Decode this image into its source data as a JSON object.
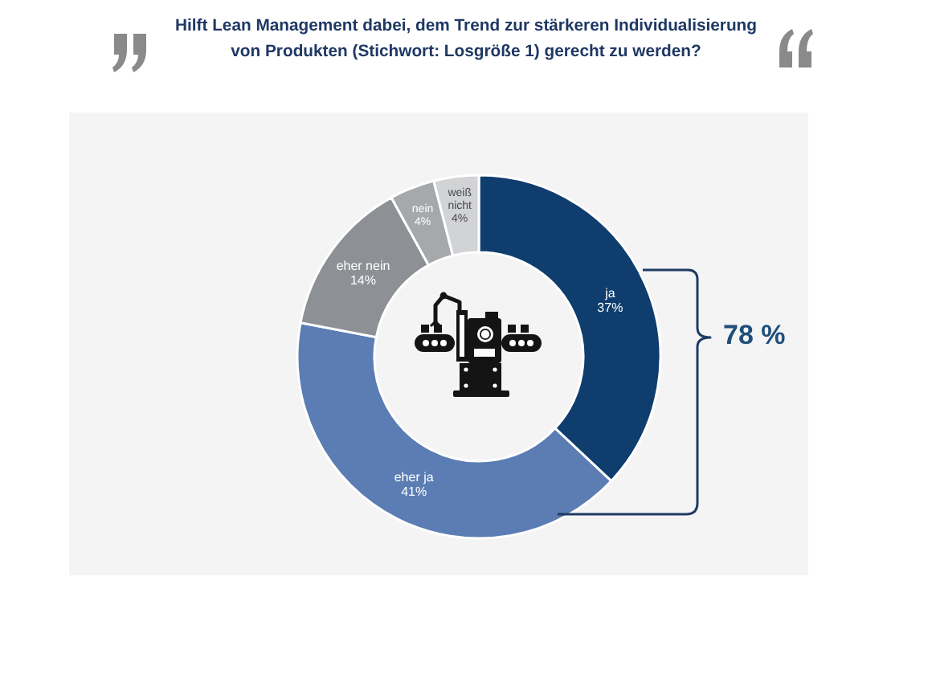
{
  "chart_data": {
    "type": "donut",
    "title": "Hilft Lean Management dabei, dem Trend zur stärkeren Individualisierung von Produkten (Stichwort: Losgröße 1) gerecht zu werden?",
    "categories": [
      "ja",
      "eher ja",
      "eher nein",
      "nein",
      "weiß nicht"
    ],
    "values": [
      37,
      41,
      14,
      4,
      4
    ],
    "colors": [
      "#0e3d6e",
      "#5b7db4",
      "#8d9095",
      "#a6a8ab",
      "#d2d3d5"
    ],
    "value_labels": [
      "37%",
      "41%",
      "14%",
      "4%",
      "4%"
    ],
    "annotations": [
      "78 %"
    ]
  }
}
